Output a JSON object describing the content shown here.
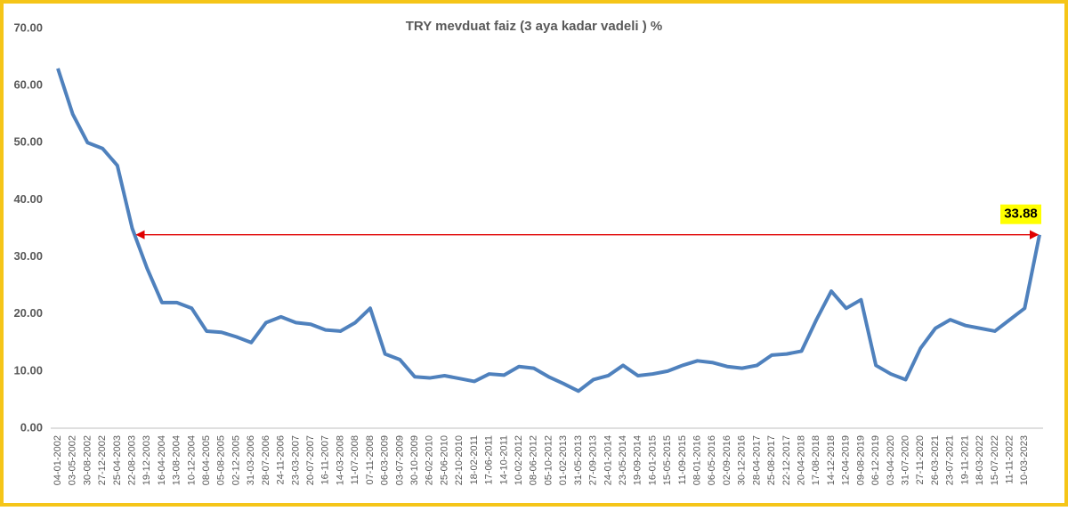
{
  "chart_data": {
    "type": "line",
    "title": "TRY mevduat faiz (3 aya kadar vadeli ) %",
    "categories": [
      "04-01-2002",
      "03-05-2002",
      "30-08-2002",
      "27-12-2002",
      "25-04-2003",
      "22-08-2003",
      "19-12-2003",
      "16-04-2004",
      "13-08-2004",
      "10-12-2004",
      "08-04-2005",
      "05-08-2005",
      "02-12-2005",
      "31-03-2006",
      "28-07-2006",
      "24-11-2006",
      "23-03-2007",
      "20-07-2007",
      "16-11-2007",
      "14-03-2008",
      "11-07-2008",
      "07-11-2008",
      "06-03-2009",
      "03-07-2009",
      "30-10-2009",
      "26-02-2010",
      "25-06-2010",
      "22-10-2010",
      "18-02-2011",
      "17-06-2011",
      "14-10-2011",
      "10-02-2012",
      "08-06-2012",
      "05-10-2012",
      "01-02-2013",
      "31-05-2013",
      "27-09-2013",
      "24-01-2014",
      "23-05-2014",
      "19-09-2014",
      "16-01-2015",
      "15-05-2015",
      "11-09-2015",
      "08-01-2016",
      "06-05-2016",
      "02-09-2016",
      "30-12-2016",
      "28-04-2017",
      "25-08-2017",
      "22-12-2017",
      "20-04-2018",
      "17-08-2018",
      "14-12-2018",
      "12-04-2019",
      "09-08-2019",
      "06-12-2019",
      "03-04-2020",
      "31-07-2020",
      "27-11-2020",
      "26-03-2021",
      "23-07-2021",
      "19-11-2021",
      "18-03-2022",
      "15-07-2022",
      "11-11-2022",
      "10-03-2023",
      null
    ],
    "series": [
      {
        "name": "TRY mevduat faiz",
        "color": "#4f81bd",
        "values": [
          63,
          55,
          50,
          49,
          46,
          35,
          28,
          22,
          22,
          21,
          17,
          16.8,
          16,
          15,
          18.5,
          19.5,
          18.5,
          18.2,
          17.2,
          17,
          18.5,
          21,
          13,
          12,
          9,
          8.8,
          9.2,
          8.7,
          8.2,
          9.5,
          9.3,
          10.8,
          10.5,
          9,
          7.8,
          6.5,
          8.5,
          9.2,
          11,
          9.2,
          9.5,
          10,
          11,
          11.8,
          11.5,
          10.8,
          10.5,
          11,
          12.8,
          13,
          13.5,
          19,
          24,
          21,
          22.5,
          11,
          9.5,
          8.5,
          14,
          17.5,
          19,
          18,
          17.5,
          17,
          19,
          21,
          33.88
        ]
      }
    ],
    "ylim": [
      0,
      70
    ],
    "yticks": [
      {
        "value": 0,
        "label": "0.00"
      },
      {
        "value": 10,
        "label": "10.00"
      },
      {
        "value": 20,
        "label": "20.00"
      },
      {
        "value": 30,
        "label": "30.00"
      },
      {
        "value": 40,
        "label": "40.00"
      },
      {
        "value": 50,
        "label": "50.00"
      },
      {
        "value": 60,
        "label": "60.00"
      },
      {
        "value": 70,
        "label": "70.00"
      }
    ],
    "grid": false
  }
}
